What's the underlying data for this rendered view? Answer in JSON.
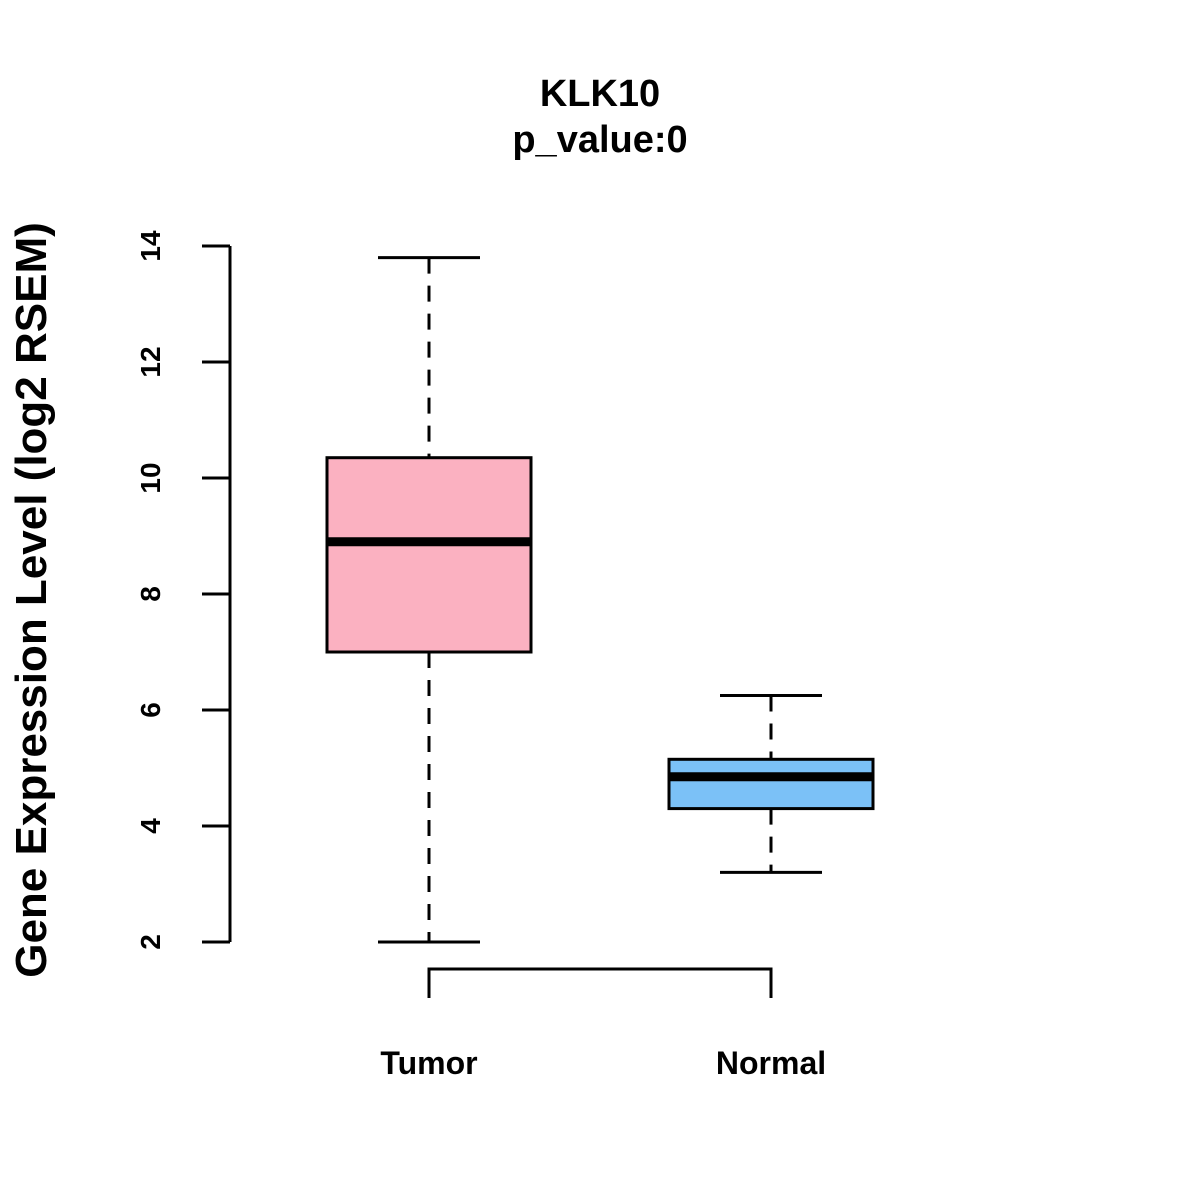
{
  "chart_data": {
    "type": "boxplot",
    "title": "KLK10",
    "subtitle": "p_value:0",
    "xlabel": "",
    "ylabel": "Gene Expression Level (log2 RSEM)",
    "ylim": [
      2,
      14
    ],
    "yticks": [
      2,
      4,
      6,
      8,
      10,
      12,
      14
    ],
    "grid": false,
    "categories": [
      "Tumor",
      "Normal"
    ],
    "boxes": [
      {
        "category": "Tumor",
        "min": 2.0,
        "q1": 7.0,
        "median": 8.9,
        "q3": 10.35,
        "max": 13.8,
        "color": "#FBB1C1"
      },
      {
        "category": "Normal",
        "min": 3.2,
        "q1": 4.3,
        "median": 4.85,
        "q3": 5.15,
        "max": 6.25,
        "color": "#7BC1F7"
      }
    ],
    "comparison_bracket": [
      "Tumor",
      "Normal"
    ]
  }
}
